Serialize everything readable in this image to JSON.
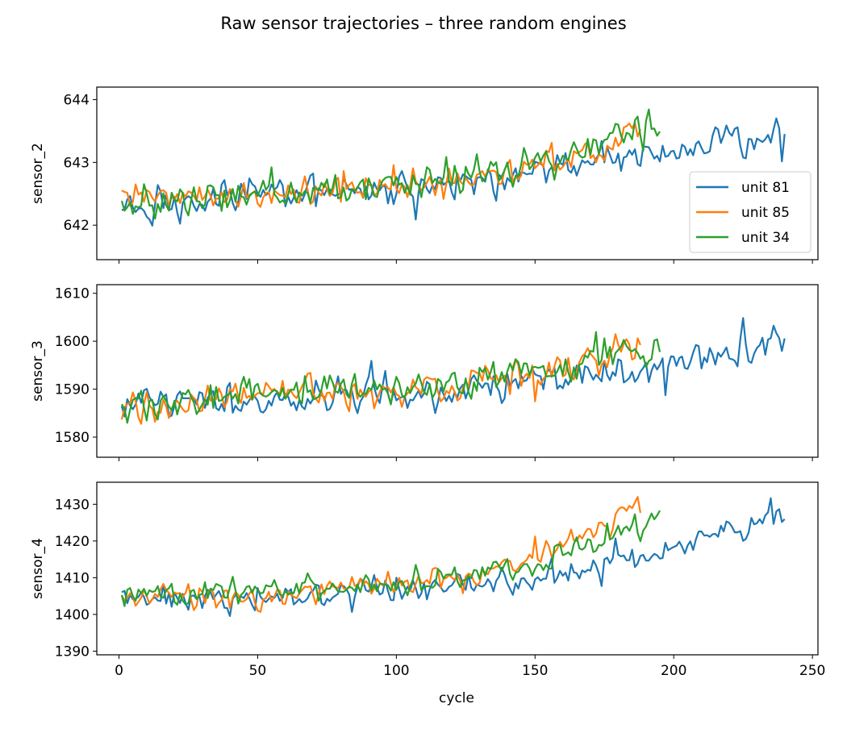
{
  "figure": {
    "title": "Raw sensor trajectories – three random engines"
  },
  "chart_data": {
    "type": "line",
    "title": "Raw sensor trajectories – three random engines",
    "xlabel": "cycle",
    "xlim": [
      -8,
      252
    ],
    "xticks": [
      0,
      50,
      100,
      150,
      200,
      250
    ],
    "legend": {
      "location": "lower-right",
      "panel": 0
    },
    "series_styles": [
      {
        "name": "unit 81",
        "color": "#1f77b4",
        "length": 240
      },
      {
        "name": "unit 85",
        "color": "#ff7f0e",
        "length": 188
      },
      {
        "name": "unit 34",
        "color": "#2ca02c",
        "length": 195
      }
    ],
    "panels": [
      {
        "ylabel": "sensor_2",
        "ylim": [
          641.45,
          644.2
        ],
        "yticks": [
          642,
          643,
          644
        ],
        "series": [
          {
            "name": "unit 81",
            "anchors": [
              [
                1,
                642.3
              ],
              [
                50,
                642.45
              ],
              [
                100,
                642.55
              ],
              [
                150,
                642.85
              ],
              [
                200,
                643.2
              ],
              [
                240,
                643.55
              ]
            ],
            "amp": 0.32
          },
          {
            "name": "unit 85",
            "anchors": [
              [
                1,
                642.45
              ],
              [
                50,
                642.5
              ],
              [
                100,
                642.6
              ],
              [
                150,
                642.9
              ],
              [
                188,
                643.5
              ]
            ],
            "amp": 0.3
          },
          {
            "name": "unit 34",
            "anchors": [
              [
                1,
                642.35
              ],
              [
                50,
                642.45
              ],
              [
                100,
                642.6
              ],
              [
                150,
                642.95
              ],
              [
                195,
                643.6
              ]
            ],
            "amp": 0.32
          }
        ]
      },
      {
        "ylabel": "sensor_3",
        "ylim": [
          1575.8,
          1611.8
        ],
        "yticks": [
          1580,
          1590,
          1600,
          1610
        ],
        "series": [
          {
            "name": "unit 81",
            "anchors": [
              [
                1,
                1588
              ],
              [
                50,
                1587
              ],
              [
                100,
                1589
              ],
              [
                150,
                1591
              ],
              [
                200,
                1596
              ],
              [
                240,
                1600
              ]
            ],
            "amp": 4.5
          },
          {
            "name": "unit 85",
            "anchors": [
              [
                1,
                1586
              ],
              [
                50,
                1588.5
              ],
              [
                100,
                1590
              ],
              [
                150,
                1593
              ],
              [
                188,
                1599
              ]
            ],
            "amp": 4.2
          },
          {
            "name": "unit 34",
            "anchors": [
              [
                1,
                1587
              ],
              [
                50,
                1589
              ],
              [
                100,
                1590
              ],
              [
                150,
                1593
              ],
              [
                195,
                1599
              ]
            ],
            "amp": 4.2
          }
        ]
      },
      {
        "ylabel": "sensor_4",
        "ylim": [
          1389,
          1436
        ],
        "yticks": [
          1390,
          1400,
          1410,
          1420,
          1430
        ],
        "series": [
          {
            "name": "unit 81",
            "anchors": [
              [
                1,
                1405
              ],
              [
                50,
                1404
              ],
              [
                100,
                1407
              ],
              [
                150,
                1410
              ],
              [
                200,
                1418
              ],
              [
                240,
                1427
              ]
            ],
            "amp": 4.2
          },
          {
            "name": "unit 85",
            "anchors": [
              [
                1,
                1405
              ],
              [
                50,
                1405
              ],
              [
                100,
                1408
              ],
              [
                150,
                1414
              ],
              [
                188,
                1430
              ]
            ],
            "amp": 4
          },
          {
            "name": "unit 34",
            "anchors": [
              [
                1,
                1406
              ],
              [
                50,
                1406
              ],
              [
                100,
                1408
              ],
              [
                150,
                1413
              ],
              [
                195,
                1427
              ]
            ],
            "amp": 4
          }
        ]
      }
    ]
  }
}
